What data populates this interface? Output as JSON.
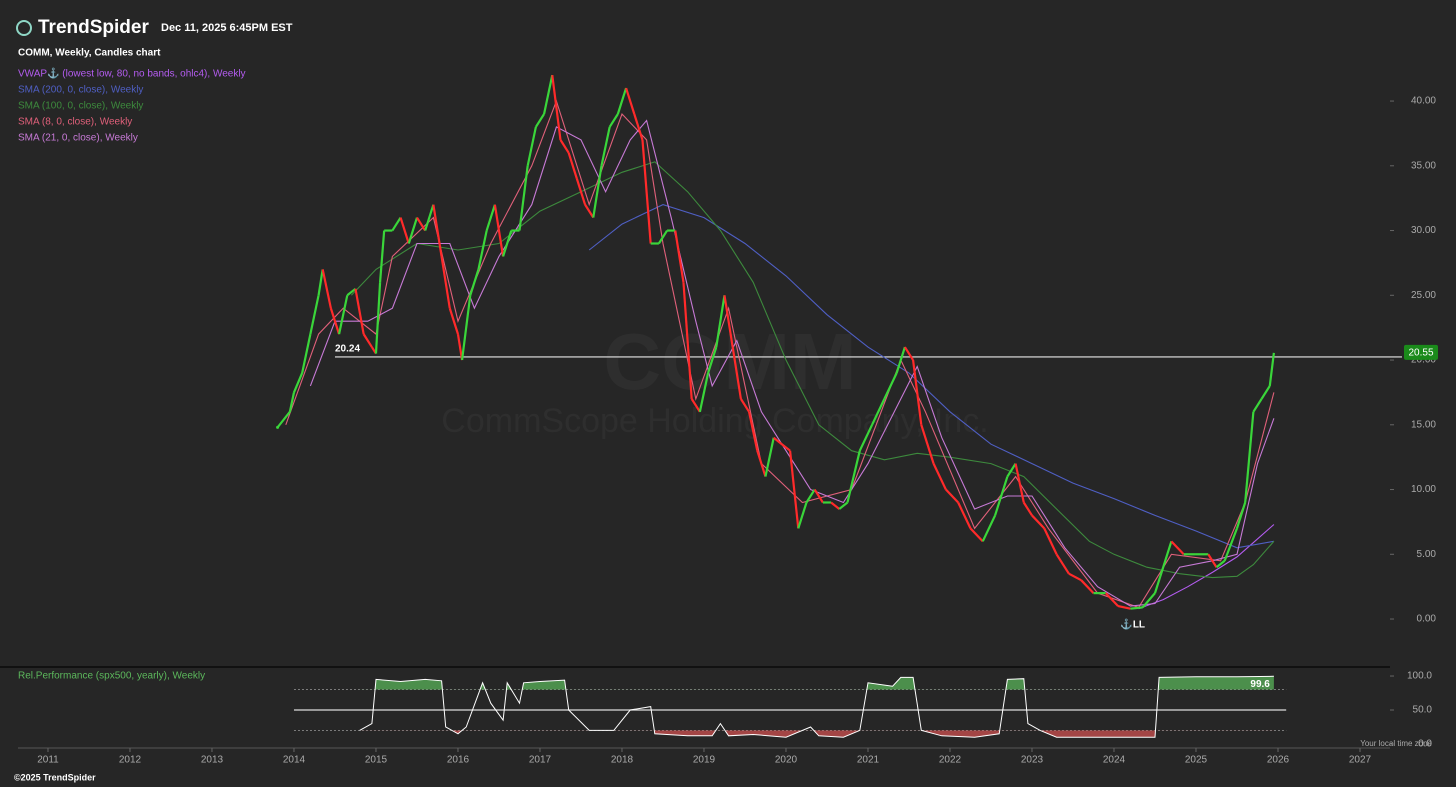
{
  "header": {
    "brand": "TrendSpider",
    "timestamp": "Dec 11, 2025 6:45PM EST"
  },
  "footer": {
    "copyright": "©2025 TrendSpider",
    "timezone": "Your local time zone"
  },
  "chart_data": [
    {
      "type": "line",
      "title": "COMM, Weekly, Candles chart",
      "watermark_symbol": "COMM",
      "watermark_name": "CommScope Holding Company, Inc.",
      "up_color": "#3ad63a",
      "down_color": "#ff2a2a",
      "xlim": [
        2010.415,
        2027.366
      ],
      "xticks": [
        2011,
        2012,
        2013,
        2014,
        2015,
        2016,
        2017,
        2018,
        2019,
        2020,
        2021,
        2022,
        2023,
        2024,
        2025,
        2026,
        2027
      ],
      "ylim": [
        -3.55,
        43.17
      ],
      "yticks": [
        {
          "value": 0,
          "label": "0.00"
        },
        {
          "value": 5,
          "label": "5.00"
        },
        {
          "value": 10,
          "label": "10.00"
        },
        {
          "value": 15,
          "label": "15.00"
        },
        {
          "value": 20,
          "label": "20.00"
        },
        {
          "value": 25,
          "label": "25.00"
        },
        {
          "value": 30,
          "label": "30.00"
        },
        {
          "value": 35,
          "label": "35.00"
        },
        {
          "value": 40,
          "label": "40.00"
        }
      ],
      "level": 20.24,
      "last_price": 20.55,
      "annotation": "⚓LL",
      "x": [
        2013.8,
        2013.95,
        2014.0,
        2014.1,
        2014.2,
        2014.3,
        2014.35,
        2014.45,
        2014.55,
        2014.65,
        2014.75,
        2014.85,
        2014.95,
        2015.0,
        2015.05,
        2015.1,
        2015.2,
        2015.3,
        2015.4,
        2015.5,
        2015.6,
        2015.7,
        2015.8,
        2015.9,
        2016.0,
        2016.05,
        2016.15,
        2016.25,
        2016.35,
        2016.45,
        2016.55,
        2016.65,
        2016.75,
        2016.85,
        2016.95,
        2017.05,
        2017.15,
        2017.25,
        2017.35,
        2017.45,
        2017.55,
        2017.65,
        2017.75,
        2017.85,
        2017.95,
        2018.05,
        2018.15,
        2018.25,
        2018.35,
        2018.45,
        2018.55,
        2018.65,
        2018.75,
        2018.85,
        2018.95,
        2019.05,
        2019.15,
        2019.25,
        2019.35,
        2019.45,
        2019.55,
        2019.65,
        2019.75,
        2019.85,
        2019.95,
        2020.05,
        2020.15,
        2020.25,
        2020.35,
        2020.45,
        2020.55,
        2020.65,
        2020.75,
        2020.9,
        2021.05,
        2021.2,
        2021.35,
        2021.45,
        2021.55,
        2021.65,
        2021.8,
        2021.95,
        2022.1,
        2022.25,
        2022.4,
        2022.55,
        2022.7,
        2022.8,
        2022.9,
        2023.0,
        2023.15,
        2023.3,
        2023.45,
        2023.6,
        2023.75,
        2023.9,
        2024.05,
        2024.2,
        2024.35,
        2024.5,
        2024.6,
        2024.7,
        2024.85,
        2025.0,
        2025.15,
        2025.25,
        2025.35,
        2025.5,
        2025.6,
        2025.7,
        2025.8,
        2025.9,
        2025.95
      ],
      "values": [
        14.8,
        16,
        17.5,
        19,
        22,
        25,
        27,
        24,
        22,
        25,
        25.5,
        22,
        21,
        20.5,
        26,
        30,
        30,
        31,
        29,
        31,
        30,
        32,
        28,
        24,
        22,
        20,
        25,
        27,
        30,
        32,
        28,
        30,
        30,
        35,
        38,
        39,
        42,
        37,
        36,
        34,
        32,
        31,
        35,
        38,
        39,
        41,
        39,
        37,
        29,
        29,
        30,
        30,
        26,
        17,
        16,
        19,
        21,
        25,
        21,
        17,
        16,
        13,
        11,
        14,
        13.5,
        13,
        7,
        9,
        10,
        9,
        9,
        8.5,
        9,
        13,
        15,
        17,
        19,
        21,
        20,
        15,
        12,
        10,
        9,
        7,
        6,
        8,
        11,
        12,
        9,
        8,
        7,
        5,
        3.5,
        3,
        2,
        2,
        1,
        0.8,
        0.9,
        2,
        4,
        6,
        5,
        5,
        5,
        4,
        4.5,
        7,
        9,
        16,
        17,
        18,
        20.55
      ],
      "series": [
        {
          "name": "VWAP⚓ (lowest low, 80, no bands, ohlc4), Weekly",
          "color": "#b45cf0",
          "x": [
            2024.3,
            2024.6,
            2024.9,
            2025.2,
            2025.5,
            2025.7,
            2025.95
          ],
          "values": [
            0.8,
            1.5,
            2.5,
            3.6,
            4.8,
            5.9,
            7.3
          ]
        },
        {
          "name": "SMA (200, 0, close), Weekly",
          "color": "#4f5fc4",
          "x": [
            2017.6,
            2018.0,
            2018.5,
            2019.0,
            2019.5,
            2020.0,
            2020.5,
            2021.0,
            2021.5,
            2022.0,
            2022.5,
            2023.0,
            2023.5,
            2024.0,
            2024.5,
            2025.0,
            2025.5,
            2025.95
          ],
          "values": [
            28.5,
            30.5,
            32,
            31,
            29,
            26.5,
            23.5,
            21,
            19,
            16,
            13.5,
            12,
            10.5,
            9.3,
            8,
            6.8,
            5.5,
            6
          ]
        },
        {
          "name": "SMA (100, 0, close), Weekly",
          "color": "#3d8a3d",
          "x": [
            2014.7,
            2015.0,
            2015.5,
            2016.0,
            2016.5,
            2017.0,
            2017.5,
            2018.0,
            2018.4,
            2018.8,
            2019.2,
            2019.6,
            2020.0,
            2020.4,
            2020.8,
            2021.2,
            2021.6,
            2022.0,
            2022.5,
            2022.9,
            2023.3,
            2023.7,
            2024.0,
            2024.4,
            2024.8,
            2025.2,
            2025.5,
            2025.7,
            2025.95
          ],
          "values": [
            25,
            27,
            29,
            28.5,
            29,
            31.5,
            33,
            34.5,
            35.3,
            33,
            30,
            26,
            20,
            15,
            13,
            12.3,
            12.8,
            12.5,
            12,
            11,
            8.5,
            6,
            5,
            4,
            3.5,
            3.2,
            3.3,
            4.2,
            6
          ]
        },
        {
          "name": "SMA (8, 0, close), Weekly",
          "color": "#e0607a",
          "x": [
            2013.9,
            2014.3,
            2014.6,
            2015.0,
            2015.2,
            2015.7,
            2016.0,
            2016.4,
            2016.9,
            2017.2,
            2017.6,
            2018.0,
            2018.3,
            2018.5,
            2018.9,
            2019.3,
            2019.7,
            2020.2,
            2020.8,
            2021.4,
            2021.7,
            2022.3,
            2022.8,
            2023.2,
            2023.8,
            2024.3,
            2024.7,
            2025.3,
            2025.6,
            2025.95
          ],
          "values": [
            15,
            22,
            24,
            22,
            28,
            31,
            23,
            29,
            35,
            40,
            32,
            39,
            37,
            29,
            17,
            24,
            12,
            9,
            10,
            20,
            16,
            7,
            11,
            7,
            2,
            0.9,
            5,
            4.5,
            9,
            17.5
          ]
        },
        {
          "name": "SMA (21, 0, close), Weekly",
          "color": "#c77ad6",
          "x": [
            2014.2,
            2014.5,
            2014.9,
            2015.2,
            2015.5,
            2015.9,
            2016.2,
            2016.5,
            2016.9,
            2017.2,
            2017.5,
            2017.8,
            2018.1,
            2018.3,
            2018.6,
            2018.9,
            2019.1,
            2019.4,
            2019.7,
            2020.0,
            2020.3,
            2020.7,
            2021.0,
            2021.4,
            2021.6,
            2021.9,
            2022.3,
            2022.7,
            2023.0,
            2023.4,
            2023.8,
            2024.2,
            2024.5,
            2024.8,
            2025.2,
            2025.5,
            2025.75,
            2025.95
          ],
          "values": [
            18,
            23,
            23,
            24,
            29,
            29,
            24,
            28,
            32,
            38,
            37,
            33,
            37,
            38.5,
            31,
            23,
            18,
            21.5,
            16,
            13,
            10,
            9,
            12,
            17,
            19.5,
            14,
            8.5,
            9.5,
            9.5,
            5.5,
            2.5,
            1,
            1.2,
            4,
            4.5,
            5,
            12,
            15.5
          ]
        }
      ]
    },
    {
      "type": "oscillator",
      "title": "Rel.Performance (spx500, yearly), Weekly",
      "color": "#ffffff",
      "above_color": "#4c8f4c",
      "below_color": "#a34545",
      "ylim": [
        -5.9,
        111.8
      ],
      "yticks": [
        {
          "value": 0,
          "label": "0.0"
        },
        {
          "value": 50,
          "label": "50.0"
        },
        {
          "value": 100,
          "label": "100.0"
        }
      ],
      "bands": [
        20,
        50,
        80
      ],
      "x": [
        2014.8,
        2014.95,
        2015.0,
        2015.3,
        2015.6,
        2015.8,
        2015.85,
        2016.0,
        2016.1,
        2016.3,
        2016.4,
        2016.55,
        2016.6,
        2016.75,
        2016.8,
        2017.0,
        2017.3,
        2017.35,
        2017.6,
        2017.9,
        2018.1,
        2018.35,
        2018.4,
        2018.8,
        2019.1,
        2019.2,
        2019.3,
        2019.6,
        2020.0,
        2020.3,
        2020.4,
        2020.7,
        2020.9,
        2021.0,
        2021.3,
        2021.4,
        2021.55,
        2021.65,
        2021.9,
        2022.3,
        2022.6,
        2022.7,
        2022.9,
        2022.95,
        2023.1,
        2023.3,
        2023.7,
        2024.0,
        2024.5,
        2024.55,
        2025.0,
        2025.5,
        2025.95
      ],
      "values": [
        20,
        30,
        95,
        92,
        95,
        93,
        25,
        15,
        25,
        90,
        60,
        35,
        90,
        60,
        90,
        92,
        94,
        50,
        20,
        20,
        50,
        55,
        15,
        12,
        12,
        30,
        12,
        14,
        10,
        25,
        12,
        10,
        20,
        90,
        85,
        98,
        98,
        20,
        12,
        10,
        15,
        95,
        96,
        30,
        20,
        10,
        10,
        10,
        10,
        98,
        99,
        99,
        99.6
      ]
    }
  ]
}
